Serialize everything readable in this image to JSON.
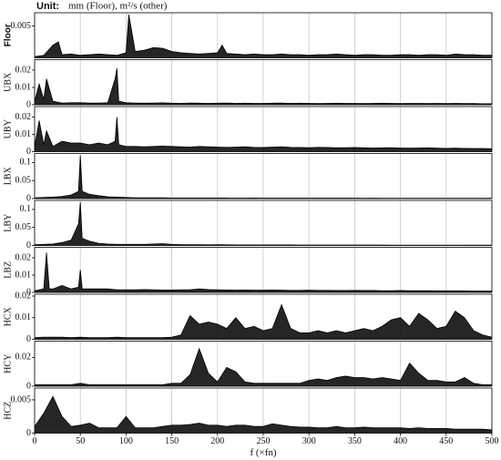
{
  "chart_data": [
    {
      "type": "line",
      "title": "Unit:",
      "subtitle": "mm (Floor), m²/s (other)",
      "ylabel": "Floor",
      "color": "#000000",
      "ylim": [
        0,
        0.0068
      ],
      "yticks": [
        0.005
      ],
      "x": [
        0,
        10,
        20,
        26,
        30,
        40,
        50,
        60,
        70,
        80,
        90,
        100,
        103,
        110,
        120,
        130,
        140,
        150,
        160,
        170,
        180,
        190,
        200,
        205,
        210,
        220,
        230,
        240,
        250,
        260,
        270,
        280,
        290,
        300,
        310,
        320,
        330,
        340,
        350,
        360,
        370,
        380,
        390,
        400,
        410,
        420,
        430,
        440,
        450,
        460,
        470,
        480,
        490,
        500
      ],
      "values": [
        0.0002,
        0.0004,
        0.002,
        0.0025,
        0.0005,
        0.0006,
        0.0004,
        0.0005,
        0.0006,
        0.0005,
        0.0004,
        0.0008,
        0.0068,
        0.001,
        0.0012,
        0.0016,
        0.0015,
        0.001,
        0.0008,
        0.0007,
        0.0006,
        0.0007,
        0.0008,
        0.002,
        0.0007,
        0.0006,
        0.0005,
        0.0006,
        0.0005,
        0.0005,
        0.0006,
        0.0005,
        0.0005,
        0.0004,
        0.0005,
        0.0005,
        0.0006,
        0.0005,
        0.0004,
        0.0005,
        0.0005,
        0.0004,
        0.0004,
        0.0005,
        0.0005,
        0.0004,
        0.0005,
        0.0005,
        0.0004,
        0.0006,
        0.0005,
        0.0005,
        0.0004,
        0.0004
      ]
    },
    {
      "type": "line",
      "ylabel": "UBX",
      "color": "#000000",
      "ylim": [
        0,
        0.025
      ],
      "yticks": [
        0,
        0.01,
        0.02
      ],
      "x": [
        0,
        5,
        10,
        13,
        20,
        30,
        40,
        50,
        60,
        70,
        80,
        88,
        90,
        92,
        100,
        110,
        120,
        130,
        140,
        150,
        160,
        170,
        180,
        190,
        200,
        210,
        220,
        230,
        240,
        250,
        260,
        270,
        280,
        290,
        300,
        310,
        320,
        330,
        340,
        350,
        360,
        370,
        380,
        390,
        400,
        410,
        420,
        430,
        440,
        450,
        460,
        470,
        480,
        490,
        500
      ],
      "values": [
        0.002,
        0.012,
        0.003,
        0.015,
        0.002,
        0.001,
        0.0012,
        0.0012,
        0.001,
        0.001,
        0.0012,
        0.015,
        0.021,
        0.002,
        0.0012,
        0.001,
        0.0009,
        0.001,
        0.0011,
        0.0009,
        0.0008,
        0.001,
        0.0009,
        0.0008,
        0.0009,
        0.001,
        0.0008,
        0.0009,
        0.0008,
        0.0008,
        0.0009,
        0.001,
        0.0008,
        0.0009,
        0.0008,
        0.0007,
        0.0008,
        0.0009,
        0.0008,
        0.0008,
        0.0007,
        0.0008,
        0.0009,
        0.0008,
        0.0007,
        0.0008,
        0.0008,
        0.0007,
        0.0008,
        0.0007,
        0.0008,
        0.0007,
        0.0007,
        0.0006,
        0.0006
      ]
    },
    {
      "type": "line",
      "ylabel": "UBY",
      "color": "#000000",
      "ylim": [
        0,
        0.025
      ],
      "yticks": [
        0,
        0.01,
        0.02
      ],
      "x": [
        0,
        5,
        10,
        13,
        20,
        30,
        40,
        50,
        60,
        70,
        80,
        88,
        90,
        92,
        100,
        110,
        120,
        130,
        140,
        150,
        160,
        170,
        180,
        190,
        200,
        210,
        220,
        230,
        240,
        250,
        260,
        270,
        280,
        290,
        300,
        310,
        320,
        330,
        340,
        350,
        360,
        370,
        380,
        390,
        400,
        410,
        420,
        430,
        440,
        450,
        460,
        470,
        480,
        490,
        500
      ],
      "values": [
        0.003,
        0.018,
        0.004,
        0.012,
        0.003,
        0.006,
        0.005,
        0.005,
        0.004,
        0.005,
        0.004,
        0.006,
        0.02,
        0.004,
        0.003,
        0.003,
        0.0028,
        0.003,
        0.0032,
        0.003,
        0.0028,
        0.0026,
        0.003,
        0.0028,
        0.0026,
        0.0025,
        0.0026,
        0.0028,
        0.0025,
        0.0024,
        0.0026,
        0.0028,
        0.0025,
        0.0024,
        0.0023,
        0.0025,
        0.0024,
        0.0022,
        0.0023,
        0.0024,
        0.0022,
        0.0021,
        0.0022,
        0.0023,
        0.0021,
        0.002,
        0.0021,
        0.0022,
        0.002,
        0.0019,
        0.002,
        0.0019,
        0.0018,
        0.0018,
        0.0017
      ]
    },
    {
      "type": "line",
      "ylabel": "LBX",
      "color": "#000000",
      "ylim": [
        0,
        0.12
      ],
      "yticks": [
        0,
        0.05,
        0.1
      ],
      "x": [
        0,
        10,
        20,
        30,
        40,
        48,
        50,
        52,
        60,
        70,
        80,
        90,
        100,
        110,
        120,
        130,
        140,
        150,
        160,
        170,
        180,
        190,
        200,
        210,
        220,
        230,
        240,
        250,
        260,
        270,
        280,
        290,
        300,
        310,
        320,
        330,
        340,
        350,
        360,
        370,
        380,
        390,
        400,
        410,
        420,
        430,
        440,
        450,
        460,
        470,
        480,
        490,
        500
      ],
      "values": [
        0.002,
        0.003,
        0.004,
        0.006,
        0.01,
        0.02,
        0.12,
        0.02,
        0.012,
        0.008,
        0.005,
        0.004,
        0.003,
        0.002,
        0.002,
        0.002,
        0.002,
        0.0015,
        0.0015,
        0.0015,
        0.0015,
        0.0014,
        0.0015,
        0.0014,
        0.0013,
        0.0013,
        0.0014,
        0.0013,
        0.0012,
        0.0013,
        0.0012,
        0.0012,
        0.0012,
        0.0011,
        0.0012,
        0.0011,
        0.0011,
        0.0011,
        0.001,
        0.0011,
        0.001,
        0.001,
        0.001,
        0.001,
        0.001,
        0.0009,
        0.001,
        0.0009,
        0.0009,
        0.0009,
        0.0009,
        0.0008,
        0.0008
      ]
    },
    {
      "type": "line",
      "ylabel": "LBY",
      "color": "#000000",
      "ylim": [
        0,
        0.12
      ],
      "yticks": [
        0,
        0.05,
        0.1
      ],
      "x": [
        0,
        10,
        20,
        30,
        40,
        48,
        50,
        52,
        60,
        70,
        80,
        90,
        100,
        110,
        120,
        130,
        140,
        150,
        160,
        170,
        180,
        190,
        200,
        210,
        220,
        230,
        240,
        250,
        260,
        270,
        280,
        290,
        300,
        310,
        320,
        330,
        340,
        350,
        360,
        370,
        380,
        390,
        400,
        410,
        420,
        430,
        440,
        450,
        460,
        470,
        480,
        490,
        500
      ],
      "values": [
        0.002,
        0.003,
        0.004,
        0.008,
        0.015,
        0.06,
        0.12,
        0.02,
        0.012,
        0.006,
        0.004,
        0.003,
        0.003,
        0.003,
        0.003,
        0.004,
        0.005,
        0.003,
        0.002,
        0.002,
        0.002,
        0.0018,
        0.002,
        0.0018,
        0.0016,
        0.0016,
        0.0015,
        0.0015,
        0.0014,
        0.0015,
        0.0014,
        0.0013,
        0.0013,
        0.0013,
        0.0012,
        0.0012,
        0.0012,
        0.0011,
        0.0011,
        0.0011,
        0.0011,
        0.001,
        0.001,
        0.001,
        0.001,
        0.001,
        0.0009,
        0.0009,
        0.0009,
        0.0009,
        0.0008,
        0.0008,
        0.0008
      ]
    },
    {
      "type": "line",
      "ylabel": "LBZ",
      "color": "#000000",
      "ylim": [
        0,
        0.025
      ],
      "yticks": [
        0,
        0.01,
        0.02
      ],
      "x": [
        0,
        10,
        13,
        16,
        20,
        30,
        40,
        48,
        50,
        52,
        60,
        70,
        80,
        90,
        100,
        110,
        120,
        130,
        140,
        150,
        160,
        170,
        180,
        190,
        200,
        210,
        220,
        230,
        240,
        250,
        260,
        270,
        280,
        290,
        300,
        310,
        320,
        330,
        340,
        350,
        360,
        370,
        380,
        390,
        400,
        410,
        420,
        430,
        440,
        450,
        460,
        470,
        480,
        490,
        500
      ],
      "values": [
        0.001,
        0.002,
        0.023,
        0.002,
        0.002,
        0.004,
        0.002,
        0.003,
        0.013,
        0.002,
        0.002,
        0.002,
        0.002,
        0.0015,
        0.0015,
        0.0015,
        0.0016,
        0.0015,
        0.0014,
        0.0014,
        0.0015,
        0.0015,
        0.002,
        0.0016,
        0.0015,
        0.0014,
        0.0013,
        0.0014,
        0.0013,
        0.0013,
        0.0014,
        0.0013,
        0.0012,
        0.0012,
        0.0013,
        0.0012,
        0.0012,
        0.0011,
        0.0011,
        0.0012,
        0.0011,
        0.0011,
        0.001,
        0.001,
        0.0011,
        0.001,
        0.001,
        0.001,
        0.0009,
        0.0009,
        0.0009,
        0.0009,
        0.0008,
        0.0008,
        0.0008
      ]
    },
    {
      "type": "line",
      "ylabel": "HCX",
      "color": "#000000",
      "ylim": [
        0,
        0.02
      ],
      "yticks": [
        0,
        0.01,
        0.02
      ],
      "x": [
        0,
        10,
        20,
        30,
        40,
        50,
        60,
        70,
        80,
        90,
        100,
        110,
        120,
        130,
        140,
        150,
        160,
        170,
        180,
        190,
        200,
        210,
        220,
        230,
        240,
        250,
        260,
        270,
        280,
        290,
        300,
        310,
        320,
        330,
        340,
        350,
        360,
        370,
        380,
        390,
        400,
        410,
        420,
        430,
        440,
        450,
        460,
        470,
        480,
        490,
        500
      ],
      "values": [
        0.0008,
        0.001,
        0.001,
        0.001,
        0.0008,
        0.001,
        0.0008,
        0.0008,
        0.0008,
        0.001,
        0.0008,
        0.0008,
        0.0008,
        0.0008,
        0.0008,
        0.001,
        0.002,
        0.011,
        0.007,
        0.008,
        0.007,
        0.005,
        0.01,
        0.005,
        0.006,
        0.004,
        0.005,
        0.016,
        0.005,
        0.003,
        0.003,
        0.004,
        0.003,
        0.004,
        0.003,
        0.004,
        0.005,
        0.004,
        0.006,
        0.009,
        0.01,
        0.006,
        0.012,
        0.009,
        0.005,
        0.006,
        0.013,
        0.01,
        0.004,
        0.002,
        0.001
      ]
    },
    {
      "type": "line",
      "ylabel": "HCY",
      "color": "#000000",
      "ylim": [
        0,
        0.03
      ],
      "yticks": [
        0,
        0.02
      ],
      "x": [
        0,
        10,
        20,
        30,
        40,
        50,
        60,
        70,
        80,
        90,
        100,
        110,
        120,
        130,
        140,
        150,
        160,
        170,
        180,
        190,
        200,
        210,
        220,
        230,
        240,
        250,
        260,
        270,
        280,
        290,
        300,
        310,
        320,
        330,
        340,
        350,
        360,
        370,
        380,
        390,
        400,
        410,
        420,
        430,
        440,
        450,
        460,
        470,
        480,
        490,
        500
      ],
      "values": [
        0.001,
        0.001,
        0.001,
        0.001,
        0.001,
        0.002,
        0.001,
        0.001,
        0.001,
        0.001,
        0.001,
        0.001,
        0.001,
        0.001,
        0.001,
        0.002,
        0.002,
        0.008,
        0.026,
        0.009,
        0.003,
        0.013,
        0.01,
        0.003,
        0.002,
        0.002,
        0.002,
        0.002,
        0.002,
        0.002,
        0.004,
        0.005,
        0.004,
        0.006,
        0.007,
        0.006,
        0.006,
        0.005,
        0.006,
        0.005,
        0.004,
        0.016,
        0.009,
        0.004,
        0.004,
        0.003,
        0.003,
        0.006,
        0.002,
        0.001,
        0.001
      ]
    },
    {
      "type": "line",
      "ylabel": "HCZ",
      "xlabel": "f (×fn)",
      "color": "#000000",
      "ylim": [
        0,
        0.0065
      ],
      "yticks": [
        0,
        0.005
      ],
      "xlim": [
        0,
        500
      ],
      "xticks": [
        0,
        50,
        100,
        150,
        200,
        250,
        300,
        350,
        400,
        450,
        500
      ],
      "x": [
        0,
        10,
        20,
        30,
        40,
        50,
        60,
        70,
        80,
        90,
        100,
        110,
        120,
        130,
        140,
        150,
        160,
        170,
        180,
        190,
        200,
        210,
        220,
        230,
        240,
        250,
        260,
        270,
        280,
        290,
        300,
        310,
        320,
        330,
        340,
        350,
        360,
        370,
        380,
        390,
        400,
        410,
        420,
        430,
        440,
        450,
        460,
        470,
        480,
        490,
        500
      ],
      "values": [
        0.001,
        0.003,
        0.0055,
        0.0025,
        0.001,
        0.0012,
        0.0015,
        0.0008,
        0.0008,
        0.0008,
        0.0025,
        0.0008,
        0.0008,
        0.0008,
        0.001,
        0.0012,
        0.0012,
        0.0013,
        0.0015,
        0.0012,
        0.0012,
        0.001,
        0.0012,
        0.0012,
        0.001,
        0.001,
        0.0014,
        0.0012,
        0.001,
        0.0009,
        0.0009,
        0.0008,
        0.0008,
        0.001,
        0.0008,
        0.0008,
        0.0009,
        0.0008,
        0.0008,
        0.0008,
        0.0008,
        0.0007,
        0.0008,
        0.0007,
        0.0007,
        0.0007,
        0.0006,
        0.0006,
        0.0006,
        0.0006,
        0.0005
      ]
    }
  ]
}
